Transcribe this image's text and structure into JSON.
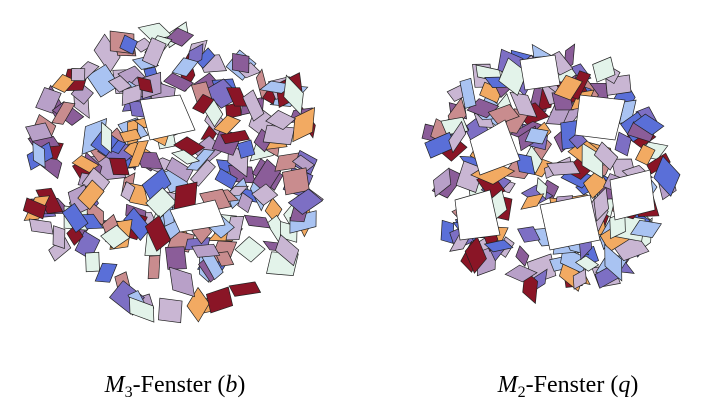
{
  "figure": {
    "panels": [
      {
        "symbol": "M",
        "subscript": "3",
        "text": "-Fenster (",
        "label": "b",
        "close": ")"
      },
      {
        "symbol": "M",
        "subscript": "2",
        "text": "-Fenster (",
        "label": "q",
        "close": ")"
      }
    ]
  }
}
